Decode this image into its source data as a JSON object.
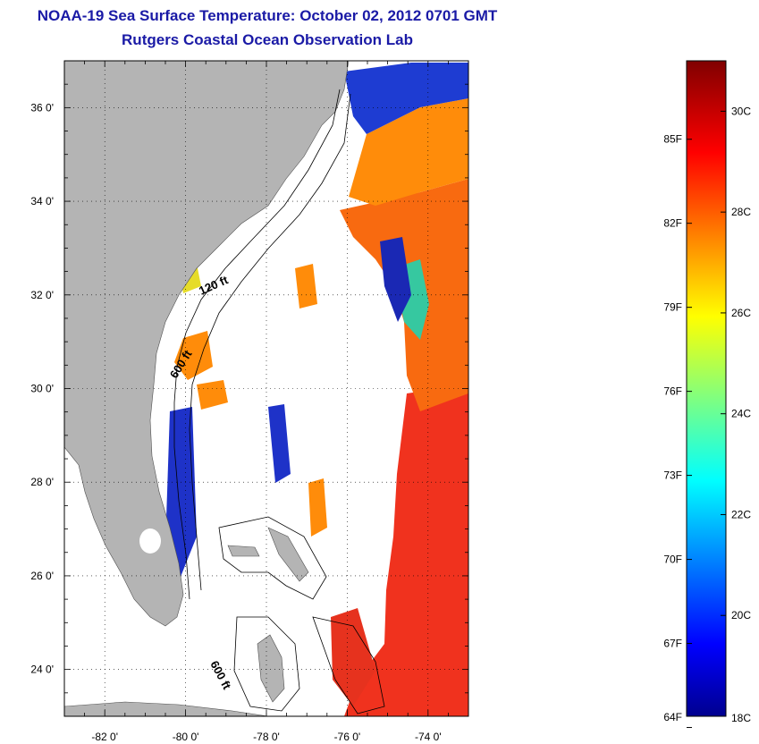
{
  "title": {
    "line1": "NOAA-19 Sea Surface Temperature:  October 02, 2012 0701 GMT",
    "line2": "Rutgers Coastal Ocean Observation Lab"
  },
  "map": {
    "lon_range": [
      -83,
      -73
    ],
    "lat_range": [
      23,
      37
    ],
    "lat_ticks": [
      {
        "value": 36,
        "label": "36 0'"
      },
      {
        "value": 34,
        "label": "34 0'"
      },
      {
        "value": 32,
        "label": "32 0'"
      },
      {
        "value": 30,
        "label": "30 0'"
      },
      {
        "value": 28,
        "label": "28 0'"
      },
      {
        "value": 26,
        "label": "26 0'"
      },
      {
        "value": 24,
        "label": "24 0'"
      }
    ],
    "lon_ticks": [
      {
        "value": -82,
        "label": "-82 0'"
      },
      {
        "value": -80,
        "label": "-80 0'"
      },
      {
        "value": -78,
        "label": "-78 0'"
      },
      {
        "value": -76,
        "label": "-76 0'"
      },
      {
        "value": -74,
        "label": "-74 0'"
      }
    ],
    "contour_labels": [
      "120 ft",
      "600 ft",
      "600 ft"
    ],
    "grid": "dotted",
    "land_color": "#b4b4b4",
    "cloud_color": "#ffffff"
  },
  "colorbar": {
    "range_c": [
      18,
      31
    ],
    "celsius_labels": [
      {
        "value": 30,
        "label": "30C"
      },
      {
        "value": 28,
        "label": "28C"
      },
      {
        "value": 26,
        "label": "26C"
      },
      {
        "value": 24,
        "label": "24C"
      },
      {
        "value": 22,
        "label": "22C"
      },
      {
        "value": 20,
        "label": "20C"
      },
      {
        "value": 18,
        "label": "18C"
      }
    ],
    "fahrenheit_labels": [
      {
        "value": 85,
        "label": "85F"
      },
      {
        "value": 82,
        "label": "82F"
      },
      {
        "value": 79,
        "label": "79F"
      },
      {
        "value": 76,
        "label": "76F"
      },
      {
        "value": 73,
        "label": "73F"
      },
      {
        "value": 70,
        "label": "70F"
      },
      {
        "value": 67,
        "label": "67F"
      },
      {
        "value": 64,
        "label": "64F"
      }
    ]
  }
}
